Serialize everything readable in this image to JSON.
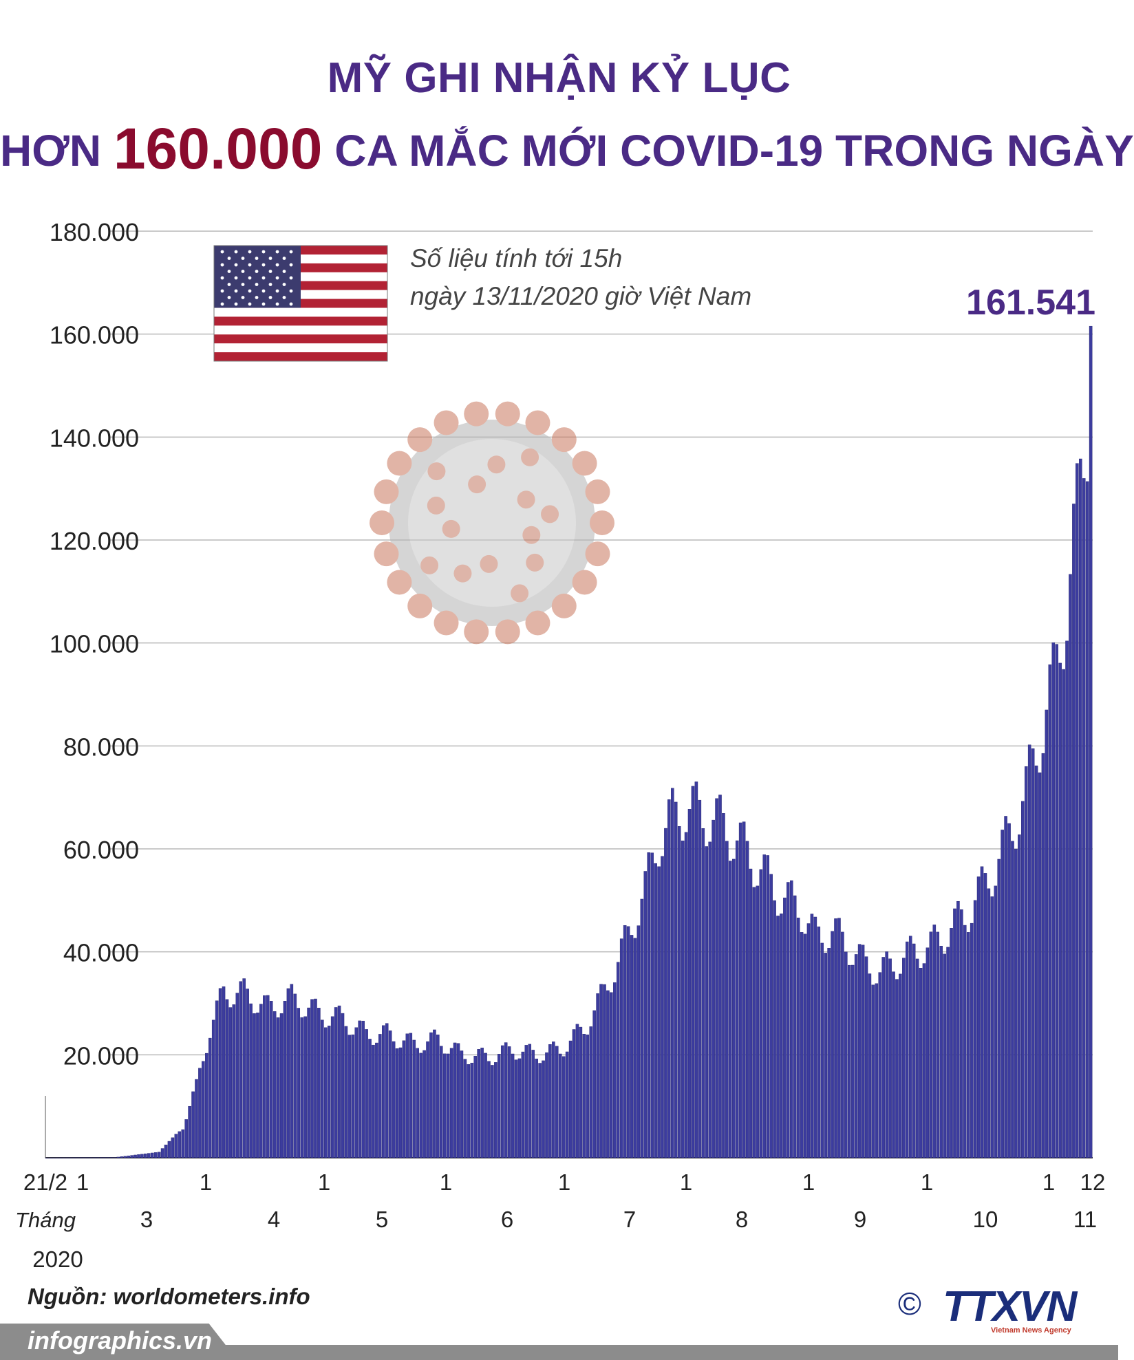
{
  "header": {
    "line1": "MỸ GHI NHẬN KỶ LỤC",
    "line2_pre": "HƠN",
    "line2_num": "160.000",
    "line2_post": "CA MẮC MỚI COVID-19 TRONG NGÀY"
  },
  "note": {
    "line1": "Số liệu tính tới 15h",
    "line2": "ngày 13/11/2020 giờ Việt Nam"
  },
  "peak_label": "161.541",
  "source": "Nguồn: worldometers.info",
  "website": "infographics.vn",
  "logo": {
    "copyright": "©",
    "name": "TTXVN",
    "sub": "Vietnam News Agency"
  },
  "colors": {
    "bar": "#3c3c9e",
    "title": "#4a2a85",
    "highlight": "#8a0b2e"
  },
  "chart_data": {
    "type": "bar",
    "ylim": [
      0,
      180000
    ],
    "y_ticks": [
      "180.000",
      "160.000",
      "140.000",
      "120.000",
      "100.000",
      "80.000",
      "60.000",
      "40.000",
      "20.000"
    ],
    "y_tick_values": [
      180000,
      160000,
      140000,
      120000,
      100000,
      80000,
      60000,
      40000,
      20000
    ],
    "grid": true,
    "x_start_label": "21/2",
    "x_year_label": "Tháng",
    "x_year": "2020",
    "month_labels": [
      {
        "label": "3",
        "day1": "1"
      },
      {
        "label": "4",
        "day1": "1"
      },
      {
        "label": "5",
        "day1": "1"
      },
      {
        "label": "6",
        "day1": "1"
      },
      {
        "label": "7",
        "day1": "1"
      },
      {
        "label": "8",
        "day1": "1"
      },
      {
        "label": "9",
        "day1": "1"
      },
      {
        "label": "10",
        "day1": "1"
      },
      {
        "label": "11",
        "day1": "1"
      }
    ],
    "last_day_label": "12",
    "segments": [
      [
        0,
        0
      ],
      [
        20,
        60
      ],
      [
        33,
        1100
      ],
      [
        40,
        6000
      ],
      [
        44,
        14000
      ],
      [
        48,
        25000
      ],
      [
        52,
        32000
      ],
      [
        58,
        32000
      ],
      [
        65,
        29000
      ],
      [
        72,
        31000
      ],
      [
        80,
        28000
      ],
      [
        87,
        27000
      ],
      [
        94,
        24000
      ],
      [
        100,
        24000
      ],
      [
        108,
        22000
      ],
      [
        115,
        23000
      ],
      [
        122,
        20000
      ],
      [
        130,
        19500
      ],
      [
        137,
        21000
      ],
      [
        144,
        20000
      ],
      [
        151,
        21000
      ],
      [
        158,
        25000
      ],
      [
        163,
        31000
      ],
      [
        168,
        38000
      ],
      [
        172,
        45000
      ],
      [
        176,
        52000
      ],
      [
        180,
        62000
      ],
      [
        184,
        66000
      ],
      [
        188,
        68000
      ],
      [
        195,
        66000
      ],
      [
        200,
        64000
      ],
      [
        205,
        60000
      ],
      [
        210,
        56000
      ],
      [
        214,
        52000
      ],
      [
        218,
        50000
      ],
      [
        222,
        48000
      ],
      [
        226,
        43000
      ],
      [
        231,
        44000
      ],
      [
        236,
        41000
      ],
      [
        240,
        38000
      ],
      [
        245,
        36000
      ],
      [
        250,
        38000
      ],
      [
        255,
        40000
      ],
      [
        260,
        41000
      ],
      [
        265,
        44000
      ],
      [
        270,
        47000
      ],
      [
        275,
        52000
      ],
      [
        280,
        58000
      ],
      [
        284,
        64000
      ],
      [
        288,
        71000
      ],
      [
        292,
        82000
      ],
      [
        296,
        92000
      ],
      [
        300,
        108000
      ],
      [
        303,
        124000
      ],
      [
        306,
        144000
      ],
      [
        307,
        161541
      ]
    ],
    "values_highlight": {
      "max": 161541
    }
  }
}
